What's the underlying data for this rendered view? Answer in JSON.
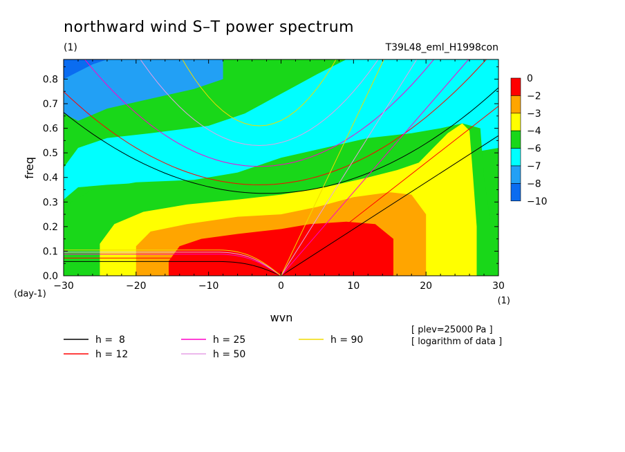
{
  "chart_data": {
    "type": "heatmap",
    "title": "northward wind S–T power spectrum",
    "subtitle_left": "(1)",
    "subtitle_right": "T39L48_eml_H1998con",
    "xlabel": "wvn",
    "ylabel": "freq",
    "x_unit": "(1)",
    "y_unit": "(day-1)",
    "xlim": [
      -30,
      30
    ],
    "ylim": [
      0,
      0.88
    ],
    "x_ticks": [
      -30,
      -20,
      -10,
      0,
      10,
      20,
      30
    ],
    "x_tick_labels": [
      "−30",
      "−20",
      "−10",
      "0",
      "10",
      "20",
      "30"
    ],
    "y_ticks": [
      0,
      0.1,
      0.2,
      0.3,
      0.4,
      0.5,
      0.6,
      0.7,
      0.8
    ],
    "y_tick_labels": [
      "0.0",
      "0.1",
      "0.2",
      "0.3",
      "0.4",
      "0.5",
      "0.6",
      "0.7",
      "0.8"
    ],
    "colorbar": {
      "levels": [
        -10,
        -8,
        -7,
        -6,
        -4,
        -3,
        -2,
        0
      ],
      "labels": [
        "−10",
        "−8",
        "−7",
        "−6",
        "−4",
        "−3",
        "−2",
        "0"
      ],
      "colors": [
        "#0a6cf0",
        "#22a0f5",
        "#00ffff",
        "#19d719",
        "#ffff00",
        "#ffa500",
        "#ff0000"
      ]
    },
    "contour_bands": [
      {
        "level": "0 to -2",
        "color": "#ff0000",
        "extent_wvn": [
          -15.5,
          15.5
        ],
        "peak_freq": 0.22
      },
      {
        "level": "-2 to -3",
        "color": "#ffa500",
        "extent_wvn": [
          -20,
          20
        ],
        "peak_freq": 0.35
      },
      {
        "level": "-3 to -4",
        "color": "#ffff00",
        "extent_wvn": [
          -25,
          27
        ],
        "peak_freq": 0.64
      },
      {
        "level": "-4 to -6",
        "color": "#19d719",
        "extent_wvn": [
          -30,
          30
        ],
        "peak_freq": 0.88
      },
      {
        "level": "-6 to -7",
        "color": "#00ffff",
        "extent_wvn": [
          -30,
          30
        ],
        "peak_freq": 0.88
      },
      {
        "level": "-7 to -8",
        "color": "#22a0f5",
        "extent_wvn": [
          -30,
          -8
        ],
        "peak_freq": 0.88
      },
      {
        "level": "-8 to -10",
        "color": "#0a6cf0",
        "extent_wvn": [
          -30,
          -24
        ],
        "peak_freq": 0.88
      }
    ],
    "dispersion_curves": [
      {
        "h": 8,
        "label": "h =  8",
        "color": "#000000"
      },
      {
        "h": 12,
        "label": "h = 12",
        "color": "#ff0000"
      },
      {
        "h": 25,
        "label": "h = 25",
        "color": "#ff00c8"
      },
      {
        "h": 50,
        "label": "h = 50",
        "color": "#e6a0e6"
      },
      {
        "h": 90,
        "label": "h = 90",
        "color": "#f0dc00"
      }
    ],
    "annotations": [
      "[ plev=25000 Pa ]",
      "[ logarithm of data ]"
    ]
  }
}
